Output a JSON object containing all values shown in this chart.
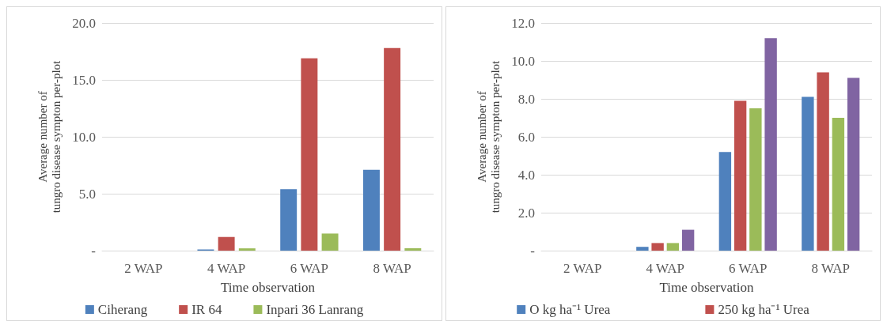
{
  "chart_data": [
    {
      "type": "bar",
      "xlabel": "Time observation",
      "ylabel": "Average number of tungro disease sympton per-plot",
      "categories": [
        "2 WAP",
        "4 WAP",
        "6 WAP",
        "8 WAP"
      ],
      "series": [
        {
          "name": "Ciherang",
          "color": "#4f81bd",
          "values": [
            0,
            0.1,
            5.4,
            7.1
          ]
        },
        {
          "name": "IR 64",
          "color": "#c0504d",
          "values": [
            0,
            1.2,
            16.9,
            17.8
          ]
        },
        {
          "name": "Inpari 36 Lanrang",
          "color": "#9bbb59",
          "values": [
            0,
            0.2,
            1.5,
            0.2
          ]
        }
      ],
      "ylim": [
        0,
        20
      ],
      "yticks": [
        {
          "value": 0,
          "label": "-"
        },
        {
          "value": 5,
          "label": "5.0"
        },
        {
          "value": 10,
          "label": "10.0"
        },
        {
          "value": 15,
          "label": "15.0"
        },
        {
          "value": 20,
          "label": "20.0"
        }
      ],
      "grid": "y",
      "legend": "bottom"
    },
    {
      "type": "bar",
      "xlabel": "Time observation",
      "ylabel": "Average number of tungro disease sympton per-plot",
      "categories": [
        "2 WAP",
        "4 WAP",
        "6 WAP",
        "8 WAP"
      ],
      "series": [
        {
          "name": "O kg ha⁻¹ Urea",
          "color": "#4f81bd",
          "values": [
            0,
            0.2,
            5.2,
            8.1
          ]
        },
        {
          "name": "250 kg ha⁻¹ Urea",
          "color": "#c0504d",
          "values": [
            0,
            0.4,
            7.9,
            9.4
          ]
        },
        {
          "color": "#9bbb59",
          "values": [
            0,
            0.4,
            7.5,
            7.0
          ]
        },
        {
          "color": "#8064a2",
          "values": [
            0,
            1.1,
            11.2,
            9.1
          ]
        }
      ],
      "ylim": [
        0,
        12
      ],
      "yticks": [
        {
          "value": 0,
          "label": "-"
        },
        {
          "value": 2,
          "label": "2.0"
        },
        {
          "value": 4,
          "label": "4.0"
        },
        {
          "value": 6,
          "label": "6.0"
        },
        {
          "value": 8,
          "label": "8.0"
        },
        {
          "value": 10,
          "label": "10.0"
        },
        {
          "value": 12,
          "label": "12.0"
        }
      ],
      "grid": "y",
      "legend": "bottom"
    }
  ]
}
